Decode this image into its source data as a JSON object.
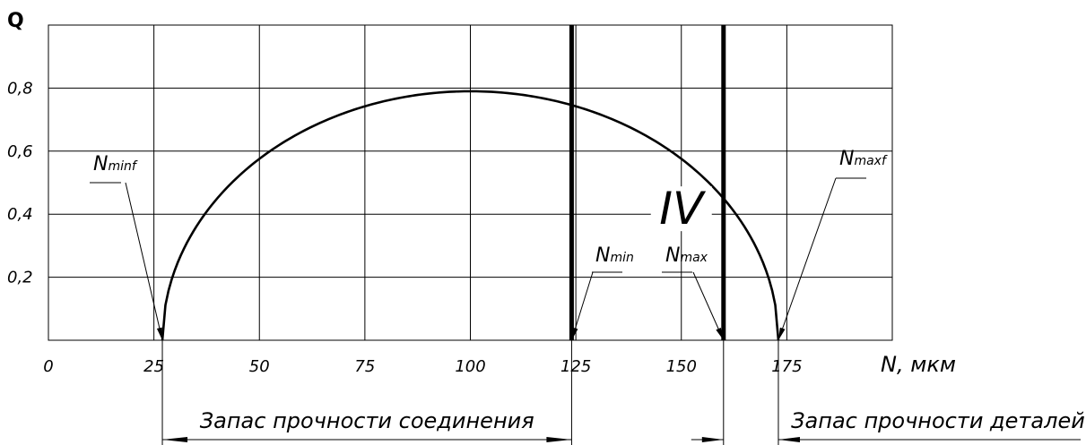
{
  "chart_data": {
    "type": "line",
    "ylabel": "Q",
    "xlabel": "N, мкм",
    "xlim": [
      0,
      200
    ],
    "ylim": [
      0,
      1.0
    ],
    "x_ticks": [
      {
        "value": 0,
        "label": "0"
      },
      {
        "value": 25,
        "label": "25"
      },
      {
        "value": 50,
        "label": "50"
      },
      {
        "value": 75,
        "label": "75"
      },
      {
        "value": 100,
        "label": "100"
      },
      {
        "value": 125,
        "label": "125"
      },
      {
        "value": 150,
        "label": "150"
      },
      {
        "value": 175,
        "label": "175"
      }
    ],
    "y_ticks": [
      {
        "value": 0.2,
        "label": "0,2"
      },
      {
        "value": 0.4,
        "label": "0,4"
      },
      {
        "value": 0.6,
        "label": "0,6"
      },
      {
        "value": 0.8,
        "label": "0,8"
      }
    ],
    "grid": true,
    "series": [
      {
        "curve": "semi-ellipse",
        "x": [
          27,
          40,
          55,
          70,
          85,
          100,
          115,
          125,
          135,
          145,
          155,
          160,
          165,
          173
        ],
        "y": [
          0.0,
          0.4,
          0.57,
          0.69,
          0.77,
          0.79,
          0.77,
          0.74,
          0.68,
          0.59,
          0.46,
          0.38,
          0.28,
          0.0
        ]
      }
    ],
    "vertical_lines": [
      {
        "x": 124,
        "style": "thick"
      },
      {
        "x": 160,
        "style": "thick"
      }
    ],
    "region_label": {
      "text": "IV",
      "x": 150,
      "y": 0.42
    },
    "annotations": [
      {
        "id": "nminf",
        "text": "N",
        "sub": "minf",
        "target_x": 27
      },
      {
        "id": "nmin",
        "text": "N",
        "sub": "min",
        "target_x": 124
      },
      {
        "id": "nmax",
        "text": "N",
        "sub": "max",
        "target_x": 160
      },
      {
        "id": "nmaxf",
        "text": "N",
        "sub": "maxf",
        "target_x": 173
      }
    ],
    "dimensions": [
      {
        "from": 27,
        "to": 124,
        "label": "Запас прочности соединения"
      },
      {
        "from": 160,
        "to": 173,
        "label": "Запас прочности деталей"
      }
    ]
  }
}
